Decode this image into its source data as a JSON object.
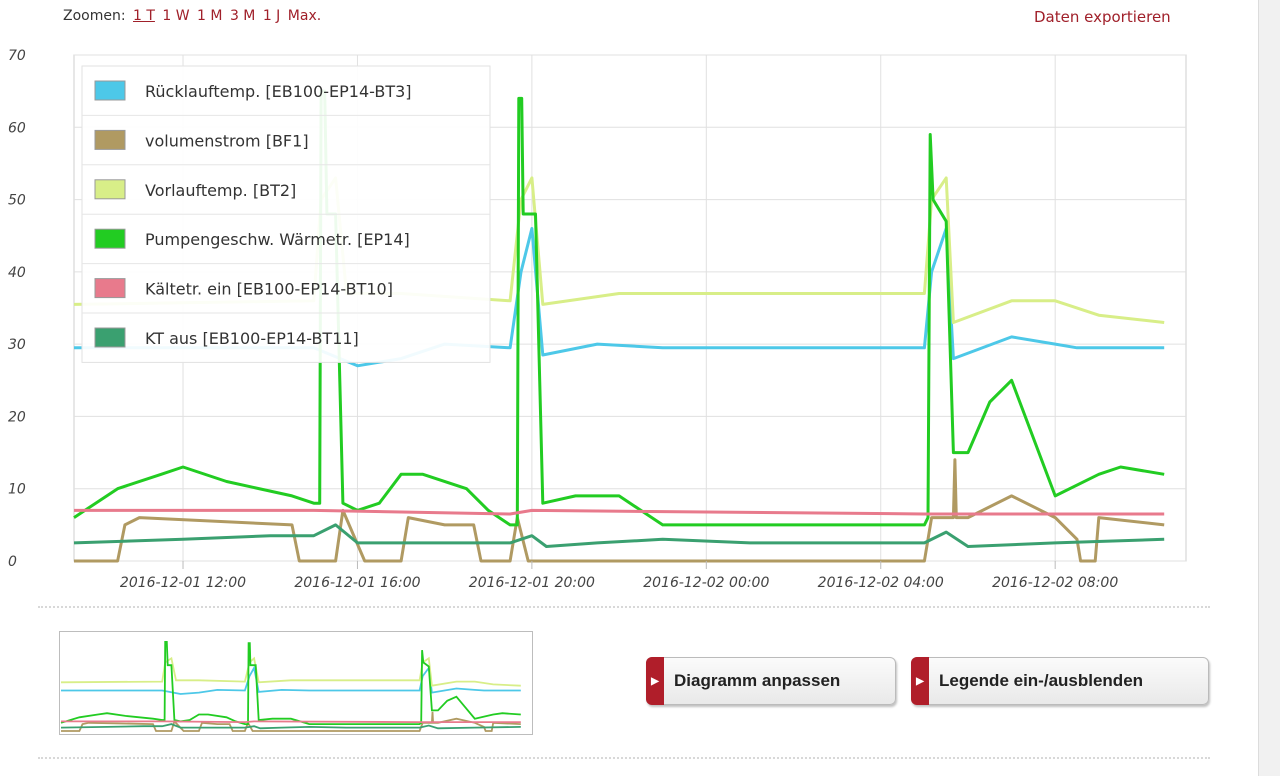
{
  "toolbar": {
    "zoom_label": "Zoomen:",
    "zoom_options": [
      "1 T",
      "1 W",
      "1 M",
      "3 M",
      "1 J",
      "Max."
    ],
    "active_zoom": "1 T",
    "export_label": "Daten exportieren"
  },
  "buttons": {
    "adjust_label": "Diagramm anpassen",
    "legend_label": "Legende ein-/ausblenden"
  },
  "colors": {
    "accent": "#a0202a",
    "grid": "#e0e0e0"
  },
  "chart_data": {
    "type": "line",
    "ylim": [
      0,
      70
    ],
    "yticks": [
      0,
      10,
      20,
      30,
      40,
      50,
      60,
      70
    ],
    "xlim": [
      "2016-12-01 09:30",
      "2016-12-02 11:00"
    ],
    "xticks": [
      "2016-12-01 12:00",
      "2016-12-01 16:00",
      "2016-12-01 20:00",
      "2016-12-02 00:00",
      "2016-12-02 04:00",
      "2016-12-02 08:00"
    ],
    "grid": true,
    "legend_position": "top-left",
    "series": [
      {
        "name": "Rücklauftemp. [EB100-EP14-BT3]",
        "color": "#4dc8e8",
        "points": [
          [
            "2016-12-01 09:30",
            29.5
          ],
          [
            "2016-12-01 15:00",
            29.5
          ],
          [
            "2016-12-01 16:00",
            27
          ],
          [
            "2016-12-01 17:00",
            28
          ],
          [
            "2016-12-01 18:00",
            30
          ],
          [
            "2016-12-01 19:30",
            29.5
          ],
          [
            "2016-12-01 19:45",
            40
          ],
          [
            "2016-12-01 20:00",
            46
          ],
          [
            "2016-12-01 20:15",
            28.5
          ],
          [
            "2016-12-01 21:30",
            30
          ],
          [
            "2016-12-01 23:00",
            29.5
          ],
          [
            "2016-12-02 05:00",
            29.5
          ],
          [
            "2016-12-02 05:10",
            40
          ],
          [
            "2016-12-02 05:30",
            46
          ],
          [
            "2016-12-02 05:40",
            28
          ],
          [
            "2016-12-02 07:00",
            31
          ],
          [
            "2016-12-02 08:00",
            30
          ],
          [
            "2016-12-02 08:30",
            29.5
          ],
          [
            "2016-12-02 10:30",
            29.5
          ]
        ]
      },
      {
        "name": "volumenstrom [BF1]",
        "color": "#b09a62",
        "points": [
          [
            "2016-12-01 09:30",
            0
          ],
          [
            "2016-12-01 10:30",
            0
          ],
          [
            "2016-12-01 10:40",
            5
          ],
          [
            "2016-12-01 11:00",
            6
          ],
          [
            "2016-12-01 14:30",
            5
          ],
          [
            "2016-12-01 14:40",
            0
          ],
          [
            "2016-12-01 15:30",
            0
          ],
          [
            "2016-12-01 15:40",
            7
          ],
          [
            "2016-12-01 16:10",
            0
          ],
          [
            "2016-12-01 17:00",
            0
          ],
          [
            "2016-12-01 17:10",
            6
          ],
          [
            "2016-12-01 18:00",
            5
          ],
          [
            "2016-12-01 18:40",
            5
          ],
          [
            "2016-12-01 18:50",
            0
          ],
          [
            "2016-12-01 19:30",
            0
          ],
          [
            "2016-12-01 19:40",
            6
          ],
          [
            "2016-12-01 19:55",
            0
          ],
          [
            "2016-12-02 05:00",
            0
          ],
          [
            "2016-12-02 05:10",
            6
          ],
          [
            "2016-12-02 05:40",
            6
          ],
          [
            "2016-12-02 05:42",
            14
          ],
          [
            "2016-12-02 05:44",
            6
          ],
          [
            "2016-12-02 06:00",
            6
          ],
          [
            "2016-12-02 07:00",
            9
          ],
          [
            "2016-12-02 08:00",
            6
          ],
          [
            "2016-12-02 08:30",
            3
          ],
          [
            "2016-12-02 08:35",
            0
          ],
          [
            "2016-12-02 08:55",
            0
          ],
          [
            "2016-12-02 09:00",
            6
          ],
          [
            "2016-12-02 10:30",
            5
          ]
        ]
      },
      {
        "name": "Vorlauftemp. [BT2]",
        "color": "#d8ee88",
        "points": [
          [
            "2016-12-01 09:30",
            35.5
          ],
          [
            "2016-12-01 15:00",
            36
          ],
          [
            "2016-12-01 15:10",
            50
          ],
          [
            "2016-12-01 15:30",
            53
          ],
          [
            "2016-12-01 15:45",
            37
          ],
          [
            "2016-12-01 17:00",
            37
          ],
          [
            "2016-12-01 19:30",
            36
          ],
          [
            "2016-12-01 19:45",
            50
          ],
          [
            "2016-12-01 20:00",
            53
          ],
          [
            "2016-12-01 20:15",
            35.5
          ],
          [
            "2016-12-01 22:00",
            37
          ],
          [
            "2016-12-02 03:00",
            37
          ],
          [
            "2016-12-02 05:00",
            37
          ],
          [
            "2016-12-02 05:10",
            50
          ],
          [
            "2016-12-02 05:30",
            53
          ],
          [
            "2016-12-02 05:40",
            33
          ],
          [
            "2016-12-02 07:00",
            36
          ],
          [
            "2016-12-02 08:00",
            36
          ],
          [
            "2016-12-02 09:00",
            34
          ],
          [
            "2016-12-02 10:30",
            33
          ]
        ]
      },
      {
        "name": "Pumpengeschw. Wärmetr. [EP14]",
        "color": "#22cc22",
        "points": [
          [
            "2016-12-01 09:30",
            6
          ],
          [
            "2016-12-01 10:30",
            10
          ],
          [
            "2016-12-01 11:30",
            12
          ],
          [
            "2016-12-01 12:00",
            13
          ],
          [
            "2016-12-01 13:00",
            11
          ],
          [
            "2016-12-01 14:30",
            9
          ],
          [
            "2016-12-01 15:00",
            8
          ],
          [
            "2016-12-01 15:08",
            8
          ],
          [
            "2016-12-01 15:10",
            65
          ],
          [
            "2016-12-01 15:15",
            65
          ],
          [
            "2016-12-01 15:18",
            48
          ],
          [
            "2016-12-01 15:30",
            48
          ],
          [
            "2016-12-01 15:40",
            8
          ],
          [
            "2016-12-01 16:00",
            7
          ],
          [
            "2016-12-01 16:30",
            8
          ],
          [
            "2016-12-01 17:00",
            12
          ],
          [
            "2016-12-01 17:30",
            12
          ],
          [
            "2016-12-01 18:30",
            10
          ],
          [
            "2016-12-01 19:00",
            7
          ],
          [
            "2016-12-01 19:30",
            5
          ],
          [
            "2016-12-01 19:40",
            5
          ],
          [
            "2016-12-01 19:42",
            64
          ],
          [
            "2016-12-01 19:46",
            64
          ],
          [
            "2016-12-01 19:48",
            48
          ],
          [
            "2016-12-01 20:05",
            48
          ],
          [
            "2016-12-01 20:15",
            8
          ],
          [
            "2016-12-01 21:00",
            9
          ],
          [
            "2016-12-01 22:00",
            9
          ],
          [
            "2016-12-01 22:30",
            7
          ],
          [
            "2016-12-01 23:00",
            5
          ],
          [
            "2016-12-02 05:00",
            5
          ],
          [
            "2016-12-02 05:05",
            6
          ],
          [
            "2016-12-02 05:08",
            59
          ],
          [
            "2016-12-02 05:12",
            50
          ],
          [
            "2016-12-02 05:30",
            47
          ],
          [
            "2016-12-02 05:40",
            15
          ],
          [
            "2016-12-02 06:00",
            15
          ],
          [
            "2016-12-02 06:30",
            22
          ],
          [
            "2016-12-02 07:00",
            25
          ],
          [
            "2016-12-02 08:00",
            9
          ],
          [
            "2016-12-02 09:00",
            12
          ],
          [
            "2016-12-02 09:30",
            13
          ],
          [
            "2016-12-02 10:30",
            12
          ]
        ]
      },
      {
        "name": "Kältetr. ein [EB100-EP14-BT10]",
        "color": "#e87a8c",
        "points": [
          [
            "2016-12-01 09:30",
            7
          ],
          [
            "2016-12-01 15:00",
            7
          ],
          [
            "2016-12-01 19:30",
            6.5
          ],
          [
            "2016-12-01 20:00",
            7
          ],
          [
            "2016-12-02 05:00",
            6.5
          ],
          [
            "2016-12-02 10:30",
            6.5
          ]
        ]
      },
      {
        "name": "KT aus [EB100-EP14-BT11]",
        "color": "#3aa070",
        "points": [
          [
            "2016-12-01 09:30",
            2.5
          ],
          [
            "2016-12-01 12:00",
            3
          ],
          [
            "2016-12-01 14:00",
            3.5
          ],
          [
            "2016-12-01 15:00",
            3.5
          ],
          [
            "2016-12-01 15:30",
            5
          ],
          [
            "2016-12-01 16:00",
            2.5
          ],
          [
            "2016-12-01 19:30",
            2.5
          ],
          [
            "2016-12-01 20:00",
            3.5
          ],
          [
            "2016-12-01 20:20",
            2
          ],
          [
            "2016-12-01 21:30",
            2.5
          ],
          [
            "2016-12-01 23:00",
            3
          ],
          [
            "2016-12-02 01:00",
            2.5
          ],
          [
            "2016-12-02 05:00",
            2.5
          ],
          [
            "2016-12-02 05:30",
            4
          ],
          [
            "2016-12-02 06:00",
            2
          ],
          [
            "2016-12-02 08:00",
            2.5
          ],
          [
            "2016-12-02 10:30",
            3
          ]
        ]
      }
    ]
  }
}
